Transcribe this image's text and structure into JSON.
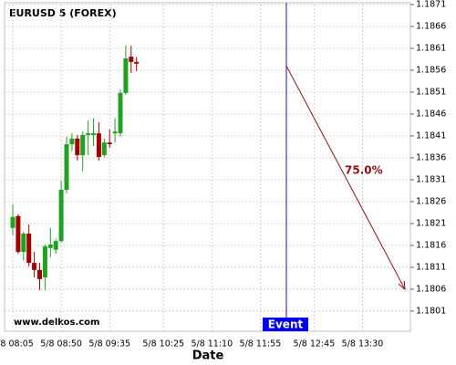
{
  "chart_data": {
    "type": "candlestick",
    "title": "EURUSD 5 (FOREX)",
    "x_label": "Date",
    "watermark": "www.delkos.com",
    "categories": [
      "5/8 08:05",
      null,
      null,
      null,
      null,
      null,
      null,
      null,
      null,
      "5/8 08:50",
      null,
      null,
      null,
      null,
      null,
      null,
      null,
      null,
      "5/8 09:35",
      null,
      null,
      null,
      null,
      null,
      null,
      null,
      null,
      null,
      "5/8 10:25",
      null,
      null,
      null,
      null,
      null,
      null,
      null,
      null,
      "5/8 11:10",
      null,
      null,
      null,
      null,
      null,
      null,
      null,
      null,
      "5/8 11:55",
      null,
      null,
      null,
      null,
      null,
      null,
      null,
      null,
      null,
      "5/8 12:45",
      null,
      null,
      null,
      null,
      null,
      null,
      null,
      null,
      "5/8 13:30",
      null,
      null,
      null,
      null,
      null,
      null,
      null,
      null
    ],
    "open": [
      1.182,
      1.18227,
      1.18145,
      1.18187,
      1.1812,
      1.18104,
      1.18087,
      1.18154,
      1.1815,
      1.1817,
      1.18287,
      1.18391,
      1.18404,
      1.18366,
      1.18412,
      1.18412,
      1.18416,
      1.18366,
      1.18395,
      1.18416,
      1.18416,
      1.18508,
      1.18591,
      1.18579,
      null,
      null,
      null,
      null,
      null,
      null,
      null,
      null,
      null,
      null,
      null,
      null,
      null,
      null,
      null,
      null,
      null,
      null,
      null,
      null,
      null,
      null,
      null,
      null,
      null,
      null,
      null,
      null,
      null,
      null,
      null,
      null,
      null,
      null,
      null,
      null,
      null,
      null,
      null,
      null,
      null,
      null,
      null,
      null,
      null,
      null,
      null,
      null,
      null,
      null
    ],
    "high": [
      1.18254,
      1.18231,
      1.18191,
      1.18208,
      1.18145,
      1.1812,
      1.18162,
      1.182,
      1.18175,
      1.18308,
      1.18408,
      1.18416,
      1.18412,
      1.1842,
      1.18445,
      1.1845,
      1.18441,
      1.18404,
      1.18425,
      1.1845,
      1.18516,
      1.18616,
      1.18616,
      1.1859,
      null,
      null,
      null,
      null,
      null,
      null,
      null,
      null,
      null,
      null,
      null,
      null,
      null,
      null,
      null,
      null,
      null,
      null,
      null,
      null,
      null,
      null,
      null,
      null,
      null,
      null,
      null,
      null,
      null,
      null,
      null,
      null,
      null,
      null,
      null,
      null,
      null,
      null,
      null,
      null,
      null,
      null,
      null,
      null,
      null,
      null,
      null,
      null,
      null,
      null
    ],
    "low": [
      1.18183,
      1.18141,
      1.18125,
      1.18112,
      1.18087,
      1.18058,
      1.18058,
      1.18133,
      1.18141,
      1.18166,
      1.18279,
      1.18375,
      1.18354,
      1.18329,
      1.18366,
      1.18387,
      1.18354,
      1.18362,
      1.18383,
      1.18395,
      1.18408,
      1.18504,
      1.18554,
      1.18558,
      null,
      null,
      null,
      null,
      null,
      null,
      null,
      null,
      null,
      null,
      null,
      null,
      null,
      null,
      null,
      null,
      null,
      null,
      null,
      null,
      null,
      null,
      null,
      null,
      null,
      null,
      null,
      null,
      null,
      null,
      null,
      null,
      null,
      null,
      null,
      null,
      null,
      null,
      null,
      null,
      null,
      null,
      null,
      null,
      null,
      null,
      null,
      null,
      null,
      null
    ],
    "close": [
      1.18225,
      1.18145,
      1.18187,
      1.1812,
      1.18104,
      1.18083,
      1.18158,
      1.18162,
      1.1817,
      1.18287,
      1.18391,
      1.18404,
      1.18366,
      1.18412,
      1.18416,
      1.18416,
      1.18362,
      1.18395,
      1.18391,
      1.1842,
      1.18508,
      1.18587,
      1.18579,
      1.18575,
      null,
      null,
      null,
      null,
      null,
      null,
      null,
      null,
      null,
      null,
      null,
      null,
      null,
      null,
      null,
      null,
      null,
      null,
      null,
      null,
      null,
      null,
      null,
      null,
      null,
      null,
      null,
      null,
      null,
      null,
      null,
      null,
      null,
      null,
      null,
      null,
      null,
      null,
      null,
      null,
      null,
      null,
      null,
      null,
      null,
      null,
      null,
      null,
      null,
      null
    ],
    "up_color": "#22a022",
    "down_color": "#a00000",
    "ylim": [
      1.17964,
      1.1871
    ],
    "yticks": [
      {
        "value": 1.1801,
        "label": "1.1801"
      },
      1.1806,
      1.1811,
      1.1816,
      1.1821,
      1.1826,
      1.1831,
      1.1836,
      1.1841,
      1.1846,
      1.1851,
      1.1856,
      1.1861,
      1.1866,
      1.1871
    ],
    "grid": true,
    "event": {
      "label": "Event",
      "color": "#1a1a9a"
    },
    "projection": {
      "start": 1.1857,
      "end": 1.1806,
      "probability": 75.0,
      "probability_label": "75.0%",
      "color": "#8b1010"
    }
  }
}
